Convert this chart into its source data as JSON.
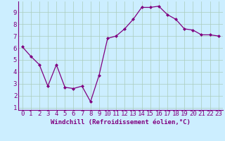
{
  "x": [
    0,
    1,
    2,
    3,
    4,
    5,
    6,
    7,
    8,
    9,
    10,
    11,
    12,
    13,
    14,
    15,
    16,
    17,
    18,
    19,
    20,
    21,
    22,
    23
  ],
  "y": [
    6.1,
    5.3,
    4.6,
    2.8,
    4.6,
    2.7,
    2.6,
    2.8,
    1.5,
    3.7,
    6.8,
    7.0,
    7.6,
    8.4,
    9.4,
    9.4,
    9.5,
    8.8,
    8.4,
    7.6,
    7.5,
    7.1,
    7.1,
    7.0
  ],
  "xlabel": "Windchill (Refroidissement éolien,°C)",
  "xlim": [
    -0.5,
    23.5
  ],
  "ylim": [
    0.8,
    9.9
  ],
  "yticks": [
    1,
    2,
    3,
    4,
    5,
    6,
    7,
    8,
    9
  ],
  "xticks": [
    0,
    1,
    2,
    3,
    4,
    5,
    6,
    7,
    8,
    9,
    10,
    11,
    12,
    13,
    14,
    15,
    16,
    17,
    18,
    19,
    20,
    21,
    22,
    23
  ],
  "line_color": "#800080",
  "marker": "D",
  "marker_size": 2.0,
  "bg_color": "#cceeff",
  "grid_color": "#aaccbb",
  "tick_label_color": "#800080",
  "xlabel_color": "#800080",
  "xlabel_fontsize": 6.5,
  "tick_fontsize": 6.5
}
